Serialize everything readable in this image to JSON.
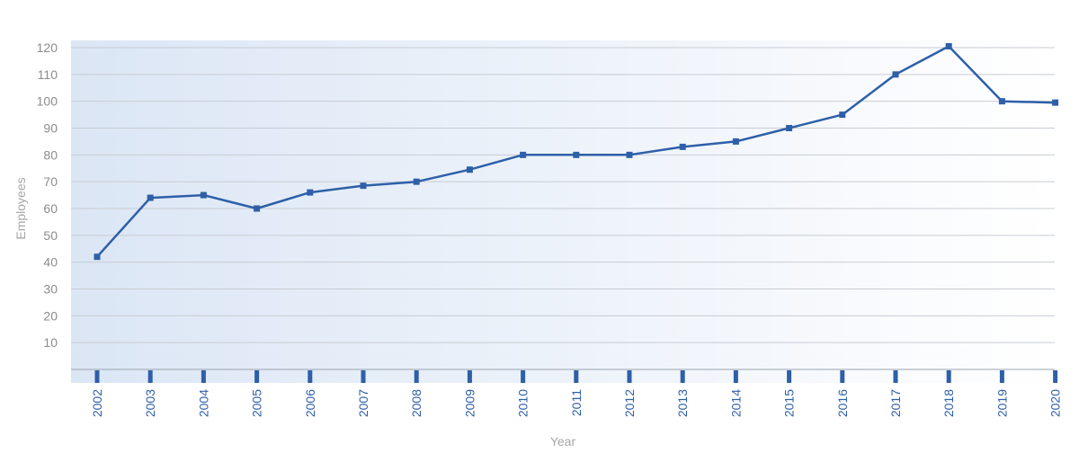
{
  "chart_data": {
    "type": "line",
    "xlabel": "Year",
    "ylabel": "Employees",
    "ylim": [
      0,
      120
    ],
    "yticks": [
      10,
      20,
      30,
      40,
      50,
      60,
      70,
      80,
      90,
      100,
      110,
      120
    ],
    "categories": [
      "2002",
      "2003",
      "2004",
      "2005",
      "2006",
      "2007",
      "2008",
      "2009",
      "2010",
      "2011",
      "2012",
      "2013",
      "2014",
      "2015",
      "2016",
      "2017",
      "2018",
      "2019",
      "2020"
    ],
    "series": [
      {
        "values": [
          42,
          64,
          65,
          60,
          66,
          68.5,
          70,
          74.5,
          80,
          80,
          80,
          83,
          85,
          90,
          95,
          110,
          120.5,
          100,
          99.5
        ]
      }
    ],
    "grid": true,
    "legend": "none",
    "colors": {
      "line": "#2e5fa8",
      "marker": "#2e5fa8",
      "grid": "#c8ccd2",
      "tick_label_x": "#2e5fa8",
      "tick_label_y": "#8c8c8c",
      "background_start": "#dbe6f5",
      "background_end": "#ffffff"
    }
  }
}
